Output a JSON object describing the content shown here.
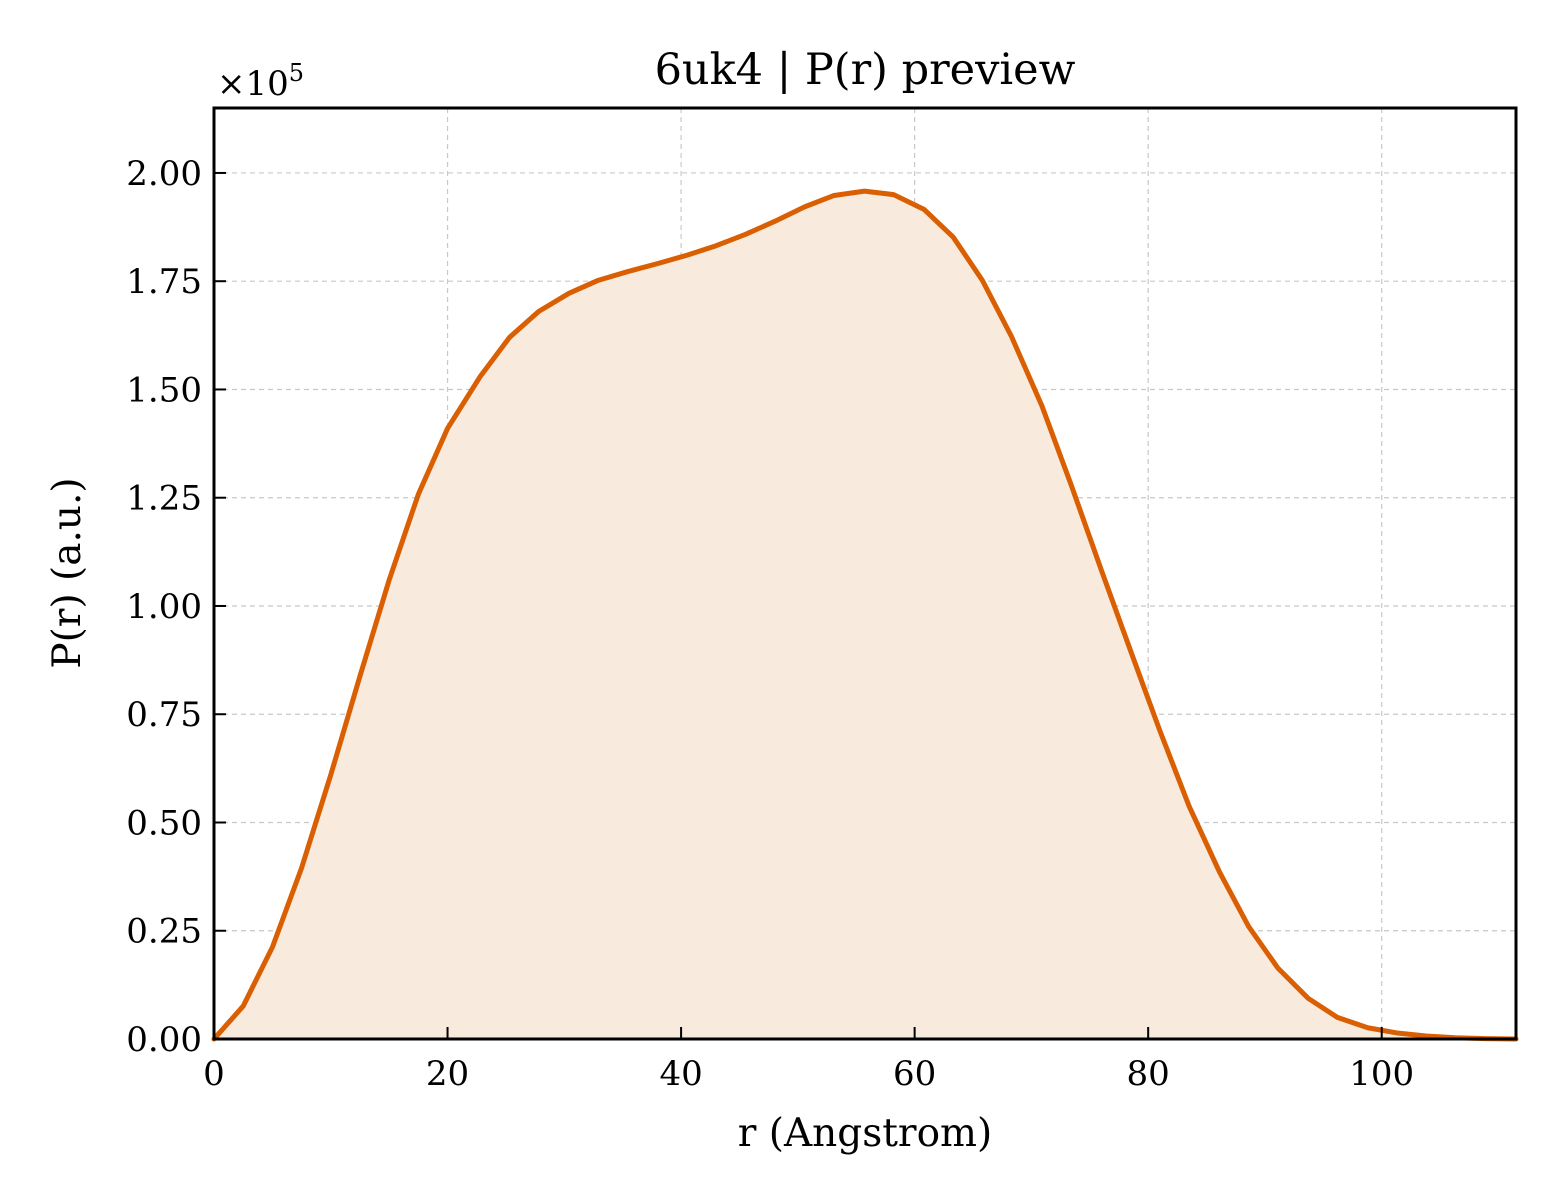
{
  "chart_data": {
    "type": "area",
    "title": "6uk4 | P(r) preview",
    "xlabel": "r (Angstrom)",
    "ylabel": "P(r) (a.u.)",
    "y_multiplier": {
      "base": "×10",
      "exponent": "5"
    },
    "xlim": [
      0,
      111.5
    ],
    "ylim": [
      0,
      2.15
    ],
    "xticks": [
      0,
      20,
      40,
      60,
      80,
      100
    ],
    "xtick_labels": [
      "0",
      "20",
      "40",
      "60",
      "80",
      "100"
    ],
    "yticks": [
      0,
      0.25,
      0.5,
      0.75,
      1.0,
      1.25,
      1.5,
      1.75,
      2.0
    ],
    "ytick_labels": [
      "0.00",
      "0.25",
      "0.50",
      "0.75",
      "1.00",
      "1.25",
      "1.50",
      "1.75",
      "2.00"
    ],
    "grid": true,
    "line_color": "#d95f02",
    "fill_color": "#f9eade",
    "series": [
      {
        "x": [
          0,
          2.5,
          5,
          7.5,
          10,
          12.5,
          15,
          17.5,
          20,
          22.8,
          25.3,
          27.8,
          30.4,
          32.9,
          35.4,
          37.9,
          40.5,
          43,
          45.5,
          48,
          50.6,
          53.1,
          55.7,
          58.2,
          60.8,
          63.3,
          65.8,
          68.3,
          70.9,
          73.4,
          76,
          78.5,
          81,
          83.5,
          86.1,
          88.6,
          91.1,
          93.7,
          96.2,
          98.8,
          101.3,
          103.8,
          106.3,
          108.9,
          111.5
        ],
        "y": [
          0.0,
          0.076,
          0.212,
          0.395,
          0.61,
          0.838,
          1.06,
          1.258,
          1.41,
          1.53,
          1.62,
          1.68,
          1.722,
          1.752,
          1.772,
          1.79,
          1.81,
          1.832,
          1.858,
          1.888,
          1.922,
          1.948,
          1.958,
          1.95,
          1.916,
          1.852,
          1.752,
          1.622,
          1.462,
          1.28,
          1.082,
          0.896,
          0.712,
          0.538,
          0.386,
          0.26,
          0.164,
          0.094,
          0.05,
          0.026,
          0.014,
          0.007,
          0.003,
          0.001,
          0.0
        ]
      }
    ]
  }
}
